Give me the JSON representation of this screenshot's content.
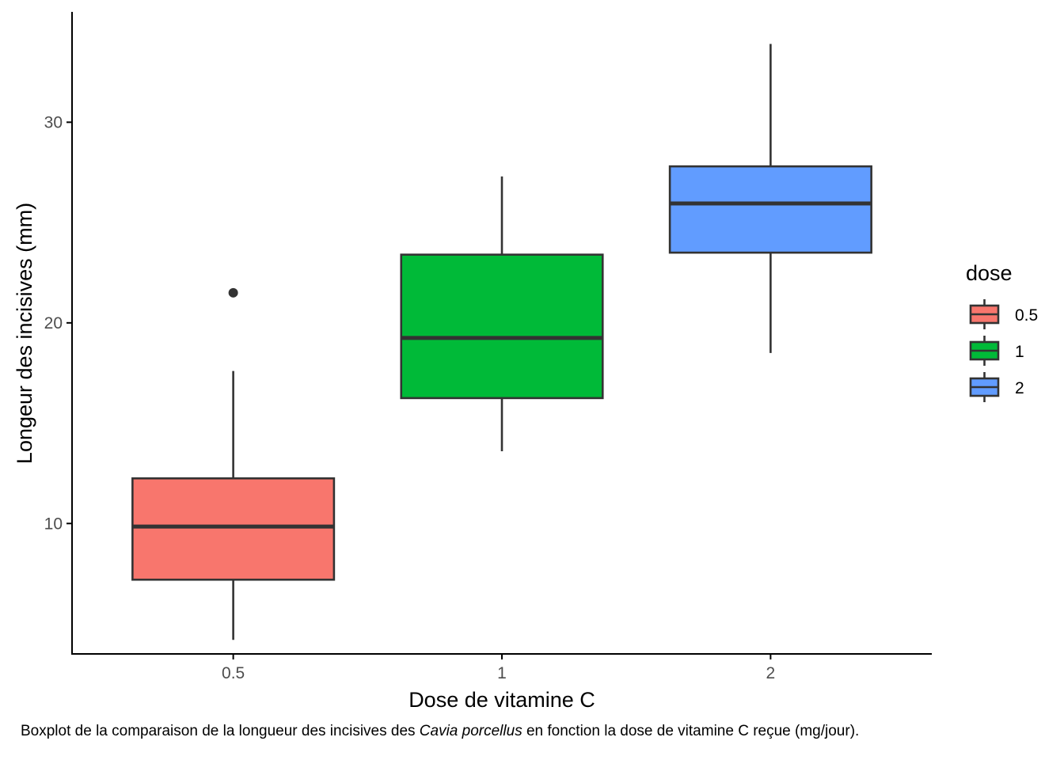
{
  "chart_data": {
    "type": "boxplot",
    "title": "",
    "xlabel": "Dose de vitamine C",
    "ylabel": "Longeur des incisives (mm)",
    "ylim": [
      3.5,
      35.5
    ],
    "yticks": [
      "10",
      "20",
      "30"
    ],
    "categories": [
      "0.5",
      "1",
      "2"
    ],
    "boxes": [
      {
        "category": "0.5",
        "fill": "#F8766D",
        "whisker_low": 4.2,
        "q1": 7.2,
        "median": 9.85,
        "q3": 12.25,
        "whisker_high": 17.6,
        "outliers": [
          21.5
        ]
      },
      {
        "category": "1",
        "fill": "#00BA38",
        "whisker_low": 13.6,
        "q1": 16.25,
        "median": 19.25,
        "q3": 23.4,
        "whisker_high": 27.3,
        "outliers": []
      },
      {
        "category": "2",
        "fill": "#619CFF",
        "whisker_low": 18.5,
        "q1": 23.5,
        "median": 25.95,
        "q3": 27.8,
        "whisker_high": 33.9,
        "outliers": []
      }
    ],
    "legend": {
      "title": "dose",
      "position": "right",
      "entries": [
        {
          "label": "0.5",
          "fill": "#F8766D"
        },
        {
          "label": "1",
          "fill": "#00BA38"
        },
        {
          "label": "2",
          "fill": "#619CFF"
        }
      ]
    },
    "grid": false
  },
  "caption": {
    "prefix": "Boxplot de la comparaison de la longueur des incisives des ",
    "species": "Cavia porcellus",
    "suffix": " en fonction la dose de vitamine C reçue (mg/jour)."
  }
}
